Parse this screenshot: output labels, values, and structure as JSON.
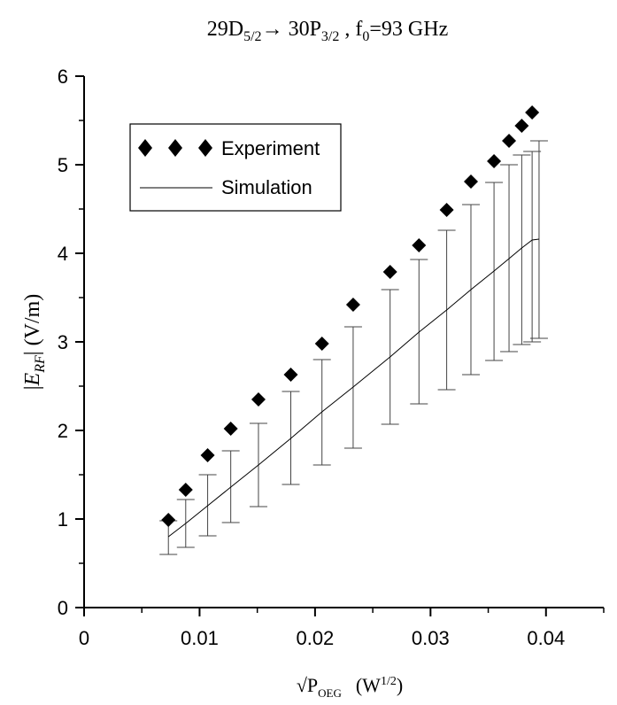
{
  "chart_data": {
    "type": "scatter",
    "title": {
      "level1": "29D",
      "level1_sub": "5/2",
      "arrow": "→ 30P",
      "level2_sub": "3/2",
      "freq_prefix": " , f",
      "freq_sub": "0",
      "freq_value": "=93 GHz"
    },
    "xlabel": {
      "prefix": "√P",
      "sub": "OEG",
      "unit_open": "(W",
      "unit_sup": "1/2",
      "unit_close": ")"
    },
    "ylabel": {
      "open": "|",
      "var": "E",
      "sub": "RF",
      "close": "| (V/m)"
    },
    "xlim": [
      0,
      0.045
    ],
    "ylim": [
      0,
      6
    ],
    "xticks": [
      0,
      0.01,
      0.02,
      0.03,
      0.04
    ],
    "xtick_labels": [
      "0",
      "0.01",
      "0.02",
      "0.03",
      "0.04"
    ],
    "yticks": [
      0,
      1,
      2,
      3,
      4,
      5,
      6
    ],
    "ytick_labels": [
      "0",
      "1",
      "2",
      "3",
      "4",
      "5",
      "6"
    ],
    "grid": false,
    "legend": {
      "position": "top-left",
      "entries": [
        "Experiment",
        "Simulation"
      ]
    },
    "series": [
      {
        "name": "Experiment",
        "marker": "diamond",
        "color": "#000000",
        "x": [
          0.0073,
          0.0088,
          0.0107,
          0.0127,
          0.0151,
          0.0179,
          0.0206,
          0.0233,
          0.0265,
          0.029,
          0.0314,
          0.0335,
          0.0355,
          0.0368,
          0.0379,
          0.0388
        ],
        "y": [
          0.99,
          1.33,
          1.72,
          2.02,
          2.35,
          2.63,
          2.98,
          3.42,
          3.79,
          4.09,
          4.49,
          4.81,
          5.04,
          5.27,
          5.44,
          5.59
        ]
      },
      {
        "name": "Simulation",
        "line": "solid",
        "color": "#000000",
        "x": [
          0.0073,
          0.0088,
          0.0107,
          0.0127,
          0.0151,
          0.0179,
          0.0206,
          0.0233,
          0.0265,
          0.029,
          0.0314,
          0.0335,
          0.0355,
          0.0368,
          0.0379,
          0.0388,
          0.0394
        ],
        "y": [
          0.8,
          0.95,
          1.15,
          1.36,
          1.61,
          1.91,
          2.21,
          2.49,
          2.83,
          3.11,
          3.36,
          3.59,
          3.8,
          3.94,
          4.06,
          4.15,
          4.16
        ],
        "error_low": [
          0.6,
          0.68,
          0.81,
          0.96,
          1.14,
          1.39,
          1.61,
          1.8,
          2.07,
          2.3,
          2.46,
          2.63,
          2.79,
          2.89,
          2.97,
          3.0,
          3.04
        ],
        "error_high": [
          0.98,
          1.22,
          1.5,
          1.77,
          2.08,
          2.44,
          2.8,
          3.17,
          3.59,
          3.93,
          4.26,
          4.55,
          4.8,
          5.0,
          5.11,
          5.15,
          5.27
        ]
      }
    ]
  }
}
